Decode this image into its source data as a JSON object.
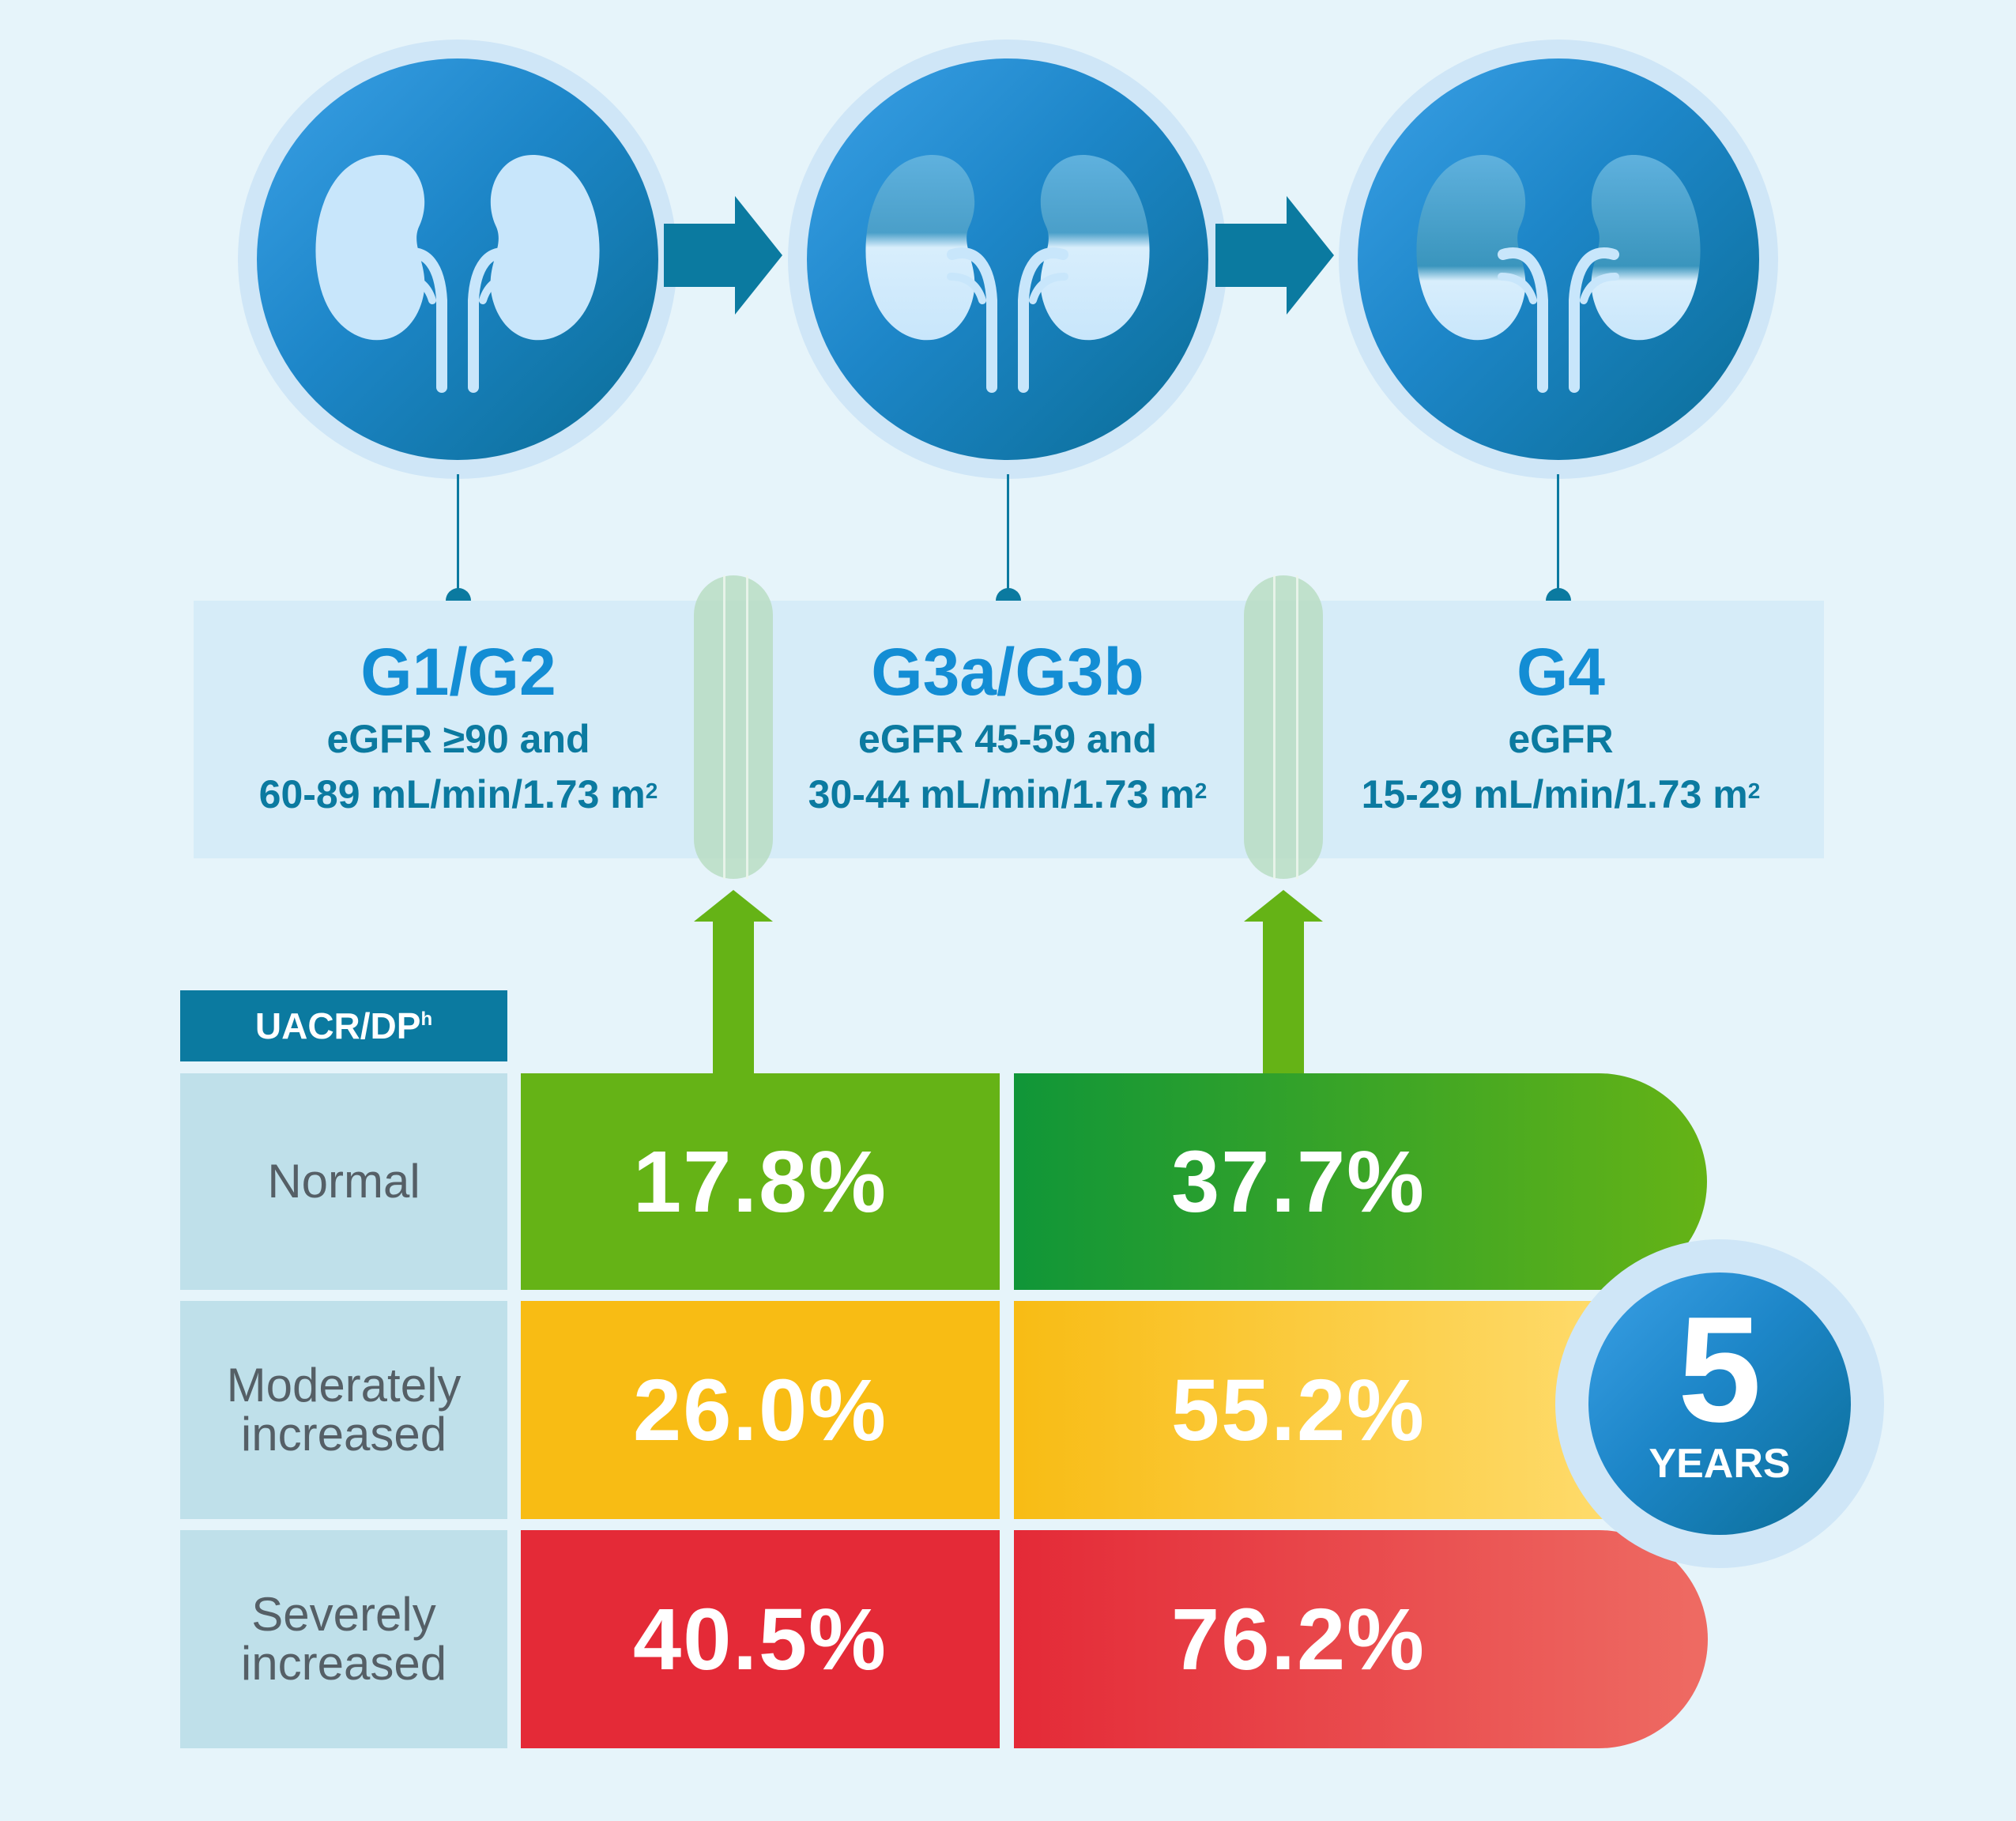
{
  "stages": [
    {
      "code": "G1/G2",
      "line1": "eGFR ≥90 and",
      "line2": "60-89 mL/min/1.73 m",
      "sup": "2"
    },
    {
      "code": "G3a/G3b",
      "line1": "eGFR 45-59 and",
      "line2": "30-44 mL/min/1.73 m",
      "sup": "2"
    },
    {
      "code": "G4",
      "line1": "eGFR",
      "line2": "15-29 mL/min/1.73 m",
      "sup": "2"
    }
  ],
  "uacr": {
    "label": "UACR/DP",
    "sup": "h"
  },
  "rows": [
    {
      "label": "Normal",
      "col1": "17.8%",
      "col2": "37.7%"
    },
    {
      "label": "Moderately increased",
      "col1": "26.0%",
      "col2": "55.2%"
    },
    {
      "label": "Severely increased",
      "col1": "40.5%",
      "col2": "76.2%"
    }
  ],
  "badge": {
    "number": "5",
    "unit": "YEARS"
  },
  "colors": {
    "teal": "#0b7aa0",
    "blue": "#138dd4",
    "green": "#65b316",
    "dark_green": "#109638",
    "yellow": "#f8bc14",
    "red": "#e42a37"
  }
}
